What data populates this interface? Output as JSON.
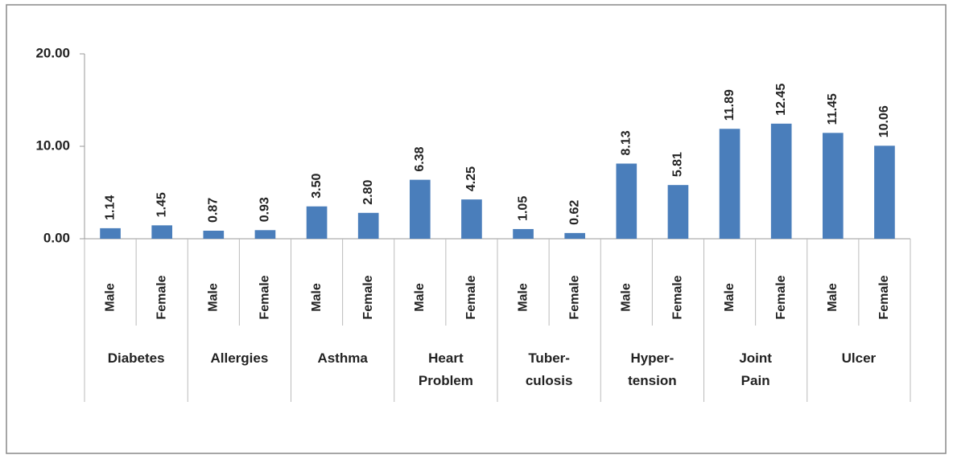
{
  "chart_data": {
    "type": "bar",
    "categories": [
      "Male",
      "Female",
      "Male",
      "Female",
      "Male",
      "Female",
      "Male",
      "Female",
      "Male",
      "Female",
      "Male",
      "Female",
      "Male",
      "Female",
      "Male",
      "Female"
    ],
    "groups": [
      "Diabetes",
      "Allergies",
      "Asthma",
      "Heart\nProblem",
      "Tuber-\nculosis",
      "Hyper-\ntension",
      "Joint\nPain",
      "Ulcer"
    ],
    "values": [
      1.14,
      1.45,
      0.87,
      0.93,
      3.5,
      2.8,
      6.38,
      4.25,
      1.05,
      0.62,
      8.13,
      5.81,
      11.89,
      12.45,
      11.45,
      10.06
    ],
    "value_labels": [
      "1.14",
      "1.45",
      "0.87",
      "0.93",
      "3.50",
      "2.80",
      "6.38",
      "4.25",
      "1.05",
      "0.62",
      "8.13",
      "5.81",
      "11.89",
      "12.45",
      "11.45",
      "10.06"
    ],
    "color": "#4a7ebb",
    "ylim": [
      0,
      20
    ],
    "yticks": [
      {
        "value": 0,
        "label": "0.00"
      },
      {
        "value": 10,
        "label": "10.00"
      },
      {
        "value": 20,
        "label": "20.00"
      }
    ],
    "grid": false
  }
}
